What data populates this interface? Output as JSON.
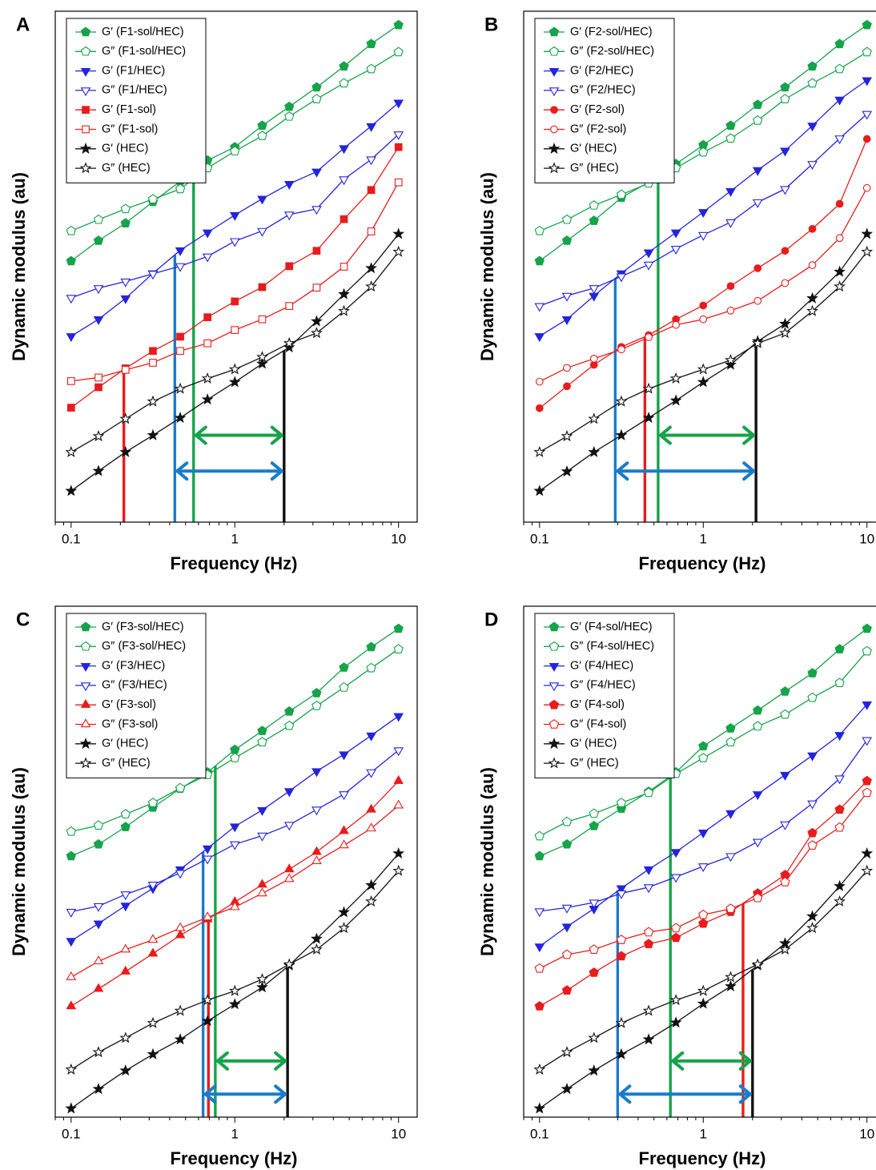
{
  "chart_data": [
    {
      "type": "line",
      "panel_label": "A",
      "xlabel": "Frequency (Hz)",
      "ylabel": "Dynamic modulus (au)",
      "x_scale": "log",
      "xlim": [
        0.08,
        13
      ],
      "ylim": [
        0,
        100
      ],
      "x_ticks": [
        0.1,
        1,
        10
      ],
      "x_tick_labels": [
        "0.1",
        "1",
        "10"
      ],
      "legend_position": "top-left",
      "x": [
        0.1,
        0.147,
        0.215,
        0.316,
        0.464,
        0.681,
        1.0,
        1.47,
        2.15,
        3.16,
        4.64,
        6.81,
        10.0
      ],
      "series": [
        {
          "name": "G′ (F1-sol/HEC)",
          "color": "#16a34a",
          "marker": "pentagon",
          "filled": true,
          "values": [
            51.1,
            55.1,
            58.5,
            62.7,
            66.7,
            70.8,
            73.4,
            77.6,
            81.3,
            85.1,
            89.2,
            93.6,
            97.3
          ]
        },
        {
          "name": "G″ (F1-sol/HEC)",
          "color": "#16a34a",
          "marker": "pentagon",
          "filled": false,
          "values": [
            57.0,
            59.2,
            61.3,
            63.2,
            65.2,
            69.3,
            72.6,
            75.6,
            79.4,
            82.8,
            85.9,
            88.7,
            92.0
          ]
        },
        {
          "name": "G′ (F1/HEC)",
          "color": "#2424dd",
          "marker": "triangle-down",
          "filled": true,
          "values": [
            36.4,
            39.7,
            43.8,
            48.7,
            53.2,
            56.7,
            60.1,
            63.3,
            66.2,
            68.6,
            73.2,
            77.5,
            82.1
          ]
        },
        {
          "name": "G″ (F1/HEC)",
          "color": "#2424dd",
          "marker": "triangle-down",
          "filled": false,
          "values": [
            43.9,
            45.8,
            47.1,
            48.6,
            50.1,
            52.0,
            55.0,
            57.0,
            60.2,
            61.3,
            67.1,
            71.0,
            75.9
          ]
        },
        {
          "name": "G′ (F1-sol)",
          "color": "#e81c1c",
          "marker": "square",
          "filled": true,
          "values": [
            22.4,
            26.4,
            30.1,
            33.5,
            36.3,
            40.1,
            43.2,
            46.0,
            50.1,
            53.1,
            59.3,
            65.0,
            73.4
          ]
        },
        {
          "name": "G″ (F1-sol)",
          "color": "#e81c1c",
          "marker": "square",
          "filled": false,
          "values": [
            27.6,
            28.3,
            29.8,
            31.2,
            33.5,
            35.0,
            37.6,
            39.7,
            42.3,
            45.9,
            50.0,
            56.9,
            66.5
          ]
        },
        {
          "name": "G′ (HEC)",
          "color": "#111111",
          "marker": "star",
          "filled": true,
          "values": [
            6.1,
            10.0,
            13.7,
            17.0,
            20.4,
            24.0,
            27.4,
            31.0,
            34.2,
            39.3,
            44.6,
            49.7,
            56.4
          ]
        },
        {
          "name": "G″ (HEC)",
          "color": "#111111",
          "marker": "star",
          "filled": false,
          "values": [
            13.7,
            16.8,
            20.2,
            23.6,
            26.1,
            28.1,
            29.9,
            32.3,
            35.0,
            37.0,
            41.3,
            46.1,
            52.9
          ]
        }
      ],
      "crossovers": [
        {
          "color": "#e81c1c",
          "x": 0.21
        },
        {
          "color": "#1a7cc9",
          "x": 0.43
        },
        {
          "color": "#16a34a",
          "x": 0.56
        },
        {
          "color": "#111111",
          "x": 2.0
        }
      ],
      "arrows": [
        {
          "color": "#16a34a",
          "x1": 0.56,
          "x2": 2.0,
          "y": 17.0
        },
        {
          "color": "#1a7cc9",
          "x1": 0.43,
          "x2": 2.0,
          "y": 10.0
        }
      ]
    },
    {
      "type": "line",
      "panel_label": "B",
      "xlabel": "Frequency (Hz)",
      "ylabel": "Dynamic modulus (au)",
      "x_scale": "log",
      "xlim": [
        0.08,
        13
      ],
      "ylim": [
        0,
        100
      ],
      "x_ticks": [
        0.1,
        1,
        10
      ],
      "x_tick_labels": [
        "0.1",
        "1",
        "10"
      ],
      "legend_position": "top-left",
      "x": [
        0.1,
        0.147,
        0.215,
        0.316,
        0.464,
        0.681,
        1.0,
        1.47,
        2.15,
        3.16,
        4.64,
        6.81,
        10.0
      ],
      "series": [
        {
          "name": "G′ (F2-sol/HEC)",
          "color": "#16a34a",
          "marker": "pentagon",
          "filled": true,
          "values": [
            51.1,
            55.1,
            59.0,
            63.5,
            66.5,
            70.1,
            73.8,
            77.6,
            81.7,
            85.1,
            89.2,
            93.6,
            97.3
          ]
        },
        {
          "name": "G″ (F2-sol/HEC)",
          "color": "#16a34a",
          "marker": "pentagon",
          "filled": false,
          "values": [
            57.0,
            59.2,
            62.0,
            64.1,
            66.3,
            69.3,
            72.4,
            75.1,
            78.6,
            82.8,
            85.9,
            88.7,
            92.0
          ]
        },
        {
          "name": "G′ (F2/HEC)",
          "color": "#2424dd",
          "marker": "triangle-down",
          "filled": true,
          "values": [
            36.4,
            39.7,
            44.3,
            48.7,
            52.8,
            56.7,
            60.7,
            64.8,
            68.9,
            72.7,
            77.6,
            82.7,
            86.5
          ]
        },
        {
          "name": "G″ (F2/HEC)",
          "color": "#2424dd",
          "marker": "triangle-down",
          "filled": false,
          "values": [
            42.3,
            44.3,
            45.8,
            48.1,
            50.4,
            53.5,
            56.2,
            58.7,
            62.6,
            65.2,
            70.1,
            75.1,
            79.9
          ]
        },
        {
          "name": "G′ (F2-sol)",
          "color": "#e81c1c",
          "marker": "circle",
          "filled": true,
          "values": [
            22.3,
            26.6,
            30.8,
            34.3,
            36.6,
            39.7,
            42.4,
            46.2,
            49.7,
            53.1,
            57.4,
            62.3,
            75.0
          ]
        },
        {
          "name": "G″ (F2-sol)",
          "color": "#e81c1c",
          "marker": "circle",
          "filled": false,
          "values": [
            27.5,
            30.2,
            32.0,
            33.8,
            36.2,
            38.6,
            39.7,
            41.4,
            43.3,
            46.8,
            50.3,
            55.6,
            65.4
          ]
        },
        {
          "name": "G′ (HEC)",
          "color": "#111111",
          "marker": "star",
          "filled": true,
          "values": [
            6.1,
            9.9,
            13.7,
            17.0,
            20.4,
            23.8,
            27.4,
            30.8,
            35.4,
            38.8,
            43.8,
            49.0,
            56.4
          ]
        },
        {
          "name": "G″ (HEC)",
          "color": "#111111",
          "marker": "star",
          "filled": false,
          "values": [
            13.7,
            16.8,
            20.2,
            23.6,
            26.1,
            28.1,
            29.9,
            31.7,
            35.0,
            37.0,
            41.3,
            46.1,
            52.9
          ]
        }
      ],
      "crossovers": [
        {
          "color": "#1a7cc9",
          "x": 0.29
        },
        {
          "color": "#e81c1c",
          "x": 0.44
        },
        {
          "color": "#16a34a",
          "x": 0.53
        },
        {
          "color": "#111111",
          "x": 2.1
        }
      ],
      "arrows": [
        {
          "color": "#16a34a",
          "x1": 0.53,
          "x2": 2.1,
          "y": 17.0
        },
        {
          "color": "#1a7cc9",
          "x1": 0.29,
          "x2": 2.1,
          "y": 10.0
        }
      ]
    },
    {
      "type": "line",
      "panel_label": "C",
      "xlabel": "Frequency (Hz)",
      "ylabel": "Dynamic modulus (au)",
      "x_scale": "log",
      "xlim": [
        0.08,
        13
      ],
      "ylim": [
        0,
        100
      ],
      "x_ticks": [
        0.1,
        1,
        10
      ],
      "x_tick_labels": [
        "0.1",
        "1",
        "10"
      ],
      "legend_position": "top-left",
      "x": [
        0.1,
        0.147,
        0.215,
        0.316,
        0.464,
        0.681,
        1.0,
        1.47,
        2.15,
        3.16,
        4.64,
        6.81,
        10.0
      ],
      "series": [
        {
          "name": "G′ (F3-sol/HEC)",
          "color": "#16a34a",
          "marker": "pentagon",
          "filled": true,
          "values": [
            51.1,
            53.4,
            56.8,
            60.6,
            64.3,
            67.5,
            71.9,
            75.6,
            79.4,
            83.0,
            88.0,
            92.0,
            95.6
          ]
        },
        {
          "name": "G″ (F3-sol/HEC)",
          "color": "#16a34a",
          "marker": "pentagon",
          "filled": false,
          "values": [
            55.9,
            57.1,
            59.3,
            61.5,
            64.4,
            67.0,
            70.3,
            73.4,
            76.6,
            80.5,
            84.1,
            87.9,
            91.6
          ]
        },
        {
          "name": "G′ (F3/HEC)",
          "color": "#2424dd",
          "marker": "triangle-down",
          "filled": true,
          "values": [
            34.5,
            37.9,
            41.4,
            44.8,
            48.5,
            52.6,
            56.9,
            60.1,
            63.8,
            67.7,
            71.0,
            74.7,
            78.5
          ]
        },
        {
          "name": "G″ (F3/HEC)",
          "color": "#2424dd",
          "marker": "triangle-down",
          "filled": false,
          "values": [
            40.2,
            41.3,
            43.6,
            45.5,
            47.8,
            50.6,
            53.4,
            55.1,
            57.2,
            60.2,
            63.2,
            67.5,
            71.8
          ]
        },
        {
          "name": "G′ (F3-sol)",
          "color": "#e81c1c",
          "marker": "triangle-up",
          "filled": true,
          "values": [
            21.7,
            25.1,
            28.5,
            32.0,
            35.6,
            38.7,
            42.1,
            45.5,
            48.5,
            51.9,
            56.0,
            60.2,
            65.8
          ]
        },
        {
          "name": "G″ (F3-sol)",
          "color": "#e81c1c",
          "marker": "triangle-up",
          "filled": false,
          "values": [
            27.4,
            30.5,
            32.8,
            34.7,
            37.0,
            39.1,
            41.1,
            43.8,
            46.6,
            50.1,
            53.2,
            56.5,
            61.0
          ]
        },
        {
          "name": "G′ (HEC)",
          "color": "#111111",
          "marker": "star",
          "filled": true,
          "values": [
            1.7,
            5.5,
            9.1,
            12.3,
            15.2,
            18.8,
            22.1,
            25.4,
            29.7,
            34.9,
            40.1,
            45.4,
            51.6
          ]
        },
        {
          "name": "G″ (HEC)",
          "color": "#111111",
          "marker": "star",
          "filled": false,
          "values": [
            9.3,
            12.7,
            15.5,
            18.4,
            20.8,
            22.9,
            24.7,
            27.0,
            29.9,
            32.8,
            37.0,
            42.2,
            48.2
          ]
        }
      ],
      "crossovers": [
        {
          "color": "#1a7cc9",
          "x": 0.64
        },
        {
          "color": "#e81c1c",
          "x": 0.69
        },
        {
          "color": "#16a34a",
          "x": 0.76
        },
        {
          "color": "#111111",
          "x": 2.1
        }
      ],
      "arrows": [
        {
          "color": "#16a34a",
          "x1": 0.76,
          "x2": 2.1,
          "y": 11.0
        },
        {
          "color": "#1a7cc9",
          "x1": 0.64,
          "x2": 2.1,
          "y": 4.5
        }
      ]
    },
    {
      "type": "line",
      "panel_label": "D",
      "xlabel": "Frequency (Hz)",
      "ylabel": "Dynamic modulus (au)",
      "x_scale": "log",
      "xlim": [
        0.08,
        13
      ],
      "ylim": [
        0,
        100
      ],
      "x_ticks": [
        0.1,
        1,
        10
      ],
      "x_tick_labels": [
        "0.1",
        "1",
        "10"
      ],
      "legend_position": "top-left",
      "x": [
        0.1,
        0.147,
        0.215,
        0.316,
        0.464,
        0.681,
        1.0,
        1.47,
        2.15,
        3.16,
        4.64,
        6.81,
        10.0
      ],
      "series": [
        {
          "name": "G′ (F4-sol/HEC)",
          "color": "#16a34a",
          "marker": "pentagon",
          "filled": true,
          "values": [
            51.1,
            53.4,
            57.0,
            60.4,
            63.7,
            67.5,
            72.6,
            76.1,
            79.6,
            83.3,
            86.9,
            91.6,
            95.6
          ]
        },
        {
          "name": "G″ (F4-sol/HEC)",
          "color": "#16a34a",
          "marker": "pentagon",
          "filled": false,
          "values": [
            55.0,
            57.8,
            59.4,
            61.5,
            63.5,
            67.2,
            70.3,
            73.4,
            76.5,
            78.8,
            82.1,
            85.0,
            91.2
          ]
        },
        {
          "name": "G′ (F4/HEC)",
          "color": "#2424dd",
          "marker": "triangle-down",
          "filled": true,
          "values": [
            33.4,
            37.3,
            40.8,
            44.8,
            48.5,
            51.9,
            55.7,
            59.5,
            63.2,
            67.0,
            70.8,
            74.8,
            80.8
          ]
        },
        {
          "name": "G″ (F4/HEC)",
          "color": "#2424dd",
          "marker": "triangle-down",
          "filled": false,
          "values": [
            40.3,
            41.0,
            42.0,
            43.8,
            45.0,
            47.0,
            49.1,
            51.1,
            53.9,
            57.3,
            61.4,
            66.3,
            73.8
          ]
        },
        {
          "name": "G′ (F4-sol)",
          "color": "#e81c1c",
          "marker": "pentagon",
          "filled": true,
          "values": [
            21.7,
            24.8,
            28.3,
            31.5,
            33.9,
            35.1,
            37.9,
            40.2,
            43.8,
            47.4,
            55.6,
            60.2,
            65.8
          ]
        },
        {
          "name": "G″ (F4-sol)",
          "color": "#e81c1c",
          "marker": "pentagon",
          "filled": false,
          "values": [
            29.1,
            31.8,
            32.8,
            34.7,
            36.2,
            37.0,
            39.6,
            40.8,
            42.9,
            46.0,
            53.2,
            56.7,
            63.5
          ]
        },
        {
          "name": "G′ (HEC)",
          "color": "#111111",
          "marker": "star",
          "filled": true,
          "values": [
            1.7,
            5.5,
            9.1,
            12.3,
            15.2,
            18.5,
            22.2,
            25.6,
            29.7,
            34.0,
            39.3,
            45.2,
            51.6
          ]
        },
        {
          "name": "G″ (HEC)",
          "color": "#111111",
          "marker": "star",
          "filled": false,
          "values": [
            9.3,
            12.7,
            15.5,
            18.4,
            20.8,
            22.9,
            24.7,
            27.4,
            29.9,
            32.8,
            37.0,
            42.2,
            48.2
          ]
        }
      ],
      "crossovers": [
        {
          "color": "#1a7cc9",
          "x": 0.3
        },
        {
          "color": "#16a34a",
          "x": 0.63
        },
        {
          "color": "#e81c1c",
          "x": 1.75
        },
        {
          "color": "#111111",
          "x": 2.0
        }
      ],
      "arrows": [
        {
          "color": "#16a34a",
          "x1": 0.63,
          "x2": 2.0,
          "y": 11.0
        },
        {
          "color": "#1a7cc9",
          "x1": 0.3,
          "x2": 2.0,
          "y": 4.5
        }
      ]
    }
  ]
}
